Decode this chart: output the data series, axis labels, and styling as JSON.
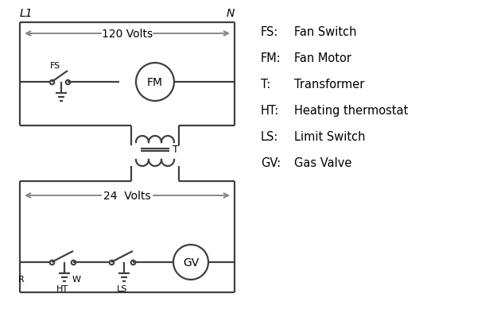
{
  "bg_color": "#ffffff",
  "line_color": "#404040",
  "arrow_color": "#888888",
  "text_color": "#000000",
  "legend_items": [
    [
      "FS:",
      "Fan Switch"
    ],
    [
      "FM:",
      "Fan Motor"
    ],
    [
      "T:",
      "Transformer"
    ],
    [
      "HT:",
      "Heating thermostat"
    ],
    [
      "LS:",
      "Limit Switch"
    ],
    [
      "GV:",
      "Gas Valve"
    ]
  ],
  "L1_label": "L1",
  "N_label": "N",
  "volts_120": "120 Volts",
  "volts_24": "24  Volts",
  "transformer_label": "T",
  "fs_label": "FS",
  "fm_label": "FM",
  "r_label": "R",
  "w_label": "W",
  "ht_label": "HT",
  "ls_label": "LS",
  "gv_label": "GV"
}
